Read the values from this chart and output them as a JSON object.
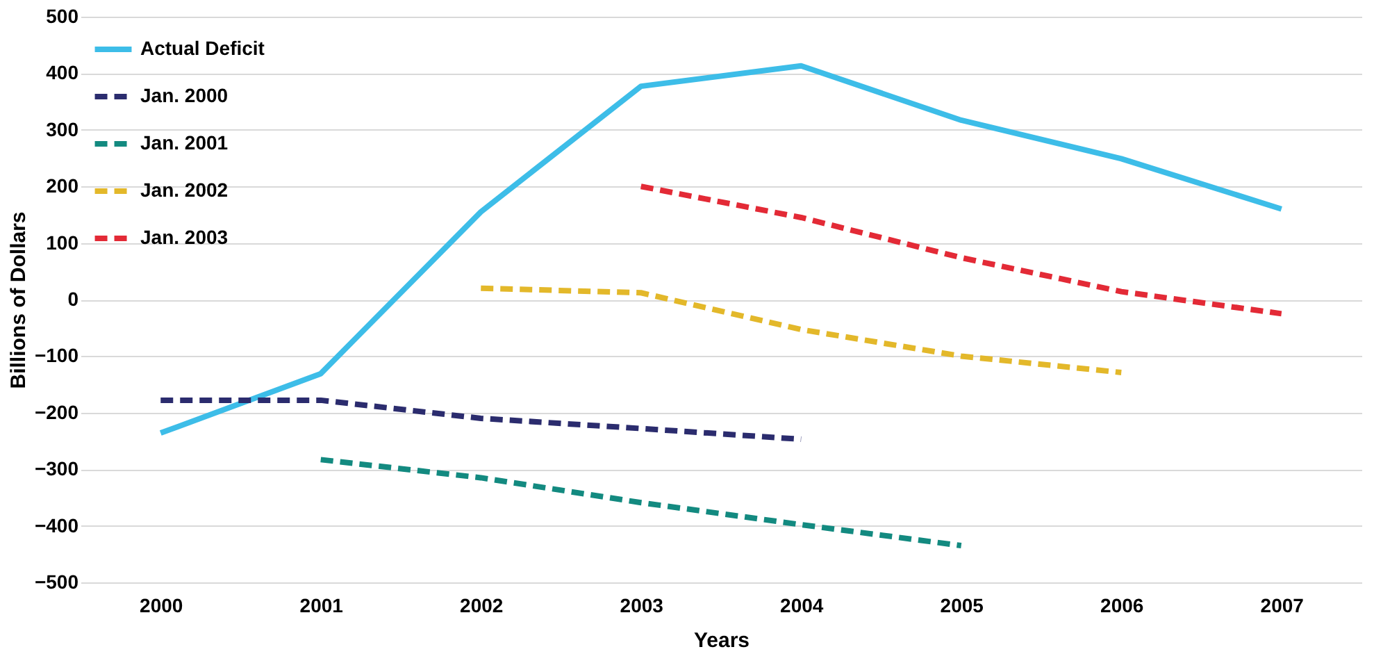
{
  "chart_data": {
    "type": "line",
    "xlabel": "Years",
    "ylabel": "Billions of Dollars",
    "categories": [
      "2000",
      "2001",
      "2002",
      "2003",
      "2004",
      "2005",
      "2006",
      "2007"
    ],
    "ylim": [
      -500,
      500
    ],
    "yticks": [
      -500,
      -400,
      -300,
      -200,
      -100,
      0,
      100,
      200,
      300,
      400,
      500
    ],
    "grid": "y",
    "legend": "top left",
    "marker": "none",
    "series": [
      {
        "name": "Actual Deficit",
        "color": "#3dbde8",
        "line_style": "solid",
        "values": [
          -236,
          -131,
          155,
          377,
          413,
          317,
          249,
          160
        ]
      },
      {
        "name": "Jan. 2000",
        "color": "#2b2c6e",
        "line_style": "dashed",
        "values": [
          -178,
          -178,
          -210,
          -228,
          -247,
          null,
          null,
          null
        ]
      },
      {
        "name": "Jan. 2001",
        "color": "#138a80",
        "line_style": "dashed",
        "values": [
          null,
          -283,
          -315,
          -359,
          -398,
          -435,
          null,
          null
        ]
      },
      {
        "name": "Jan. 2002",
        "color": "#e3b82a",
        "line_style": "dashed",
        "values": [
          null,
          null,
          20,
          12,
          -53,
          -100,
          -129,
          null
        ]
      },
      {
        "name": "Jan. 2003",
        "color": "#e32a36",
        "line_style": "dashed",
        "values": [
          null,
          null,
          null,
          200,
          145,
          74,
          14,
          -25
        ]
      }
    ]
  }
}
